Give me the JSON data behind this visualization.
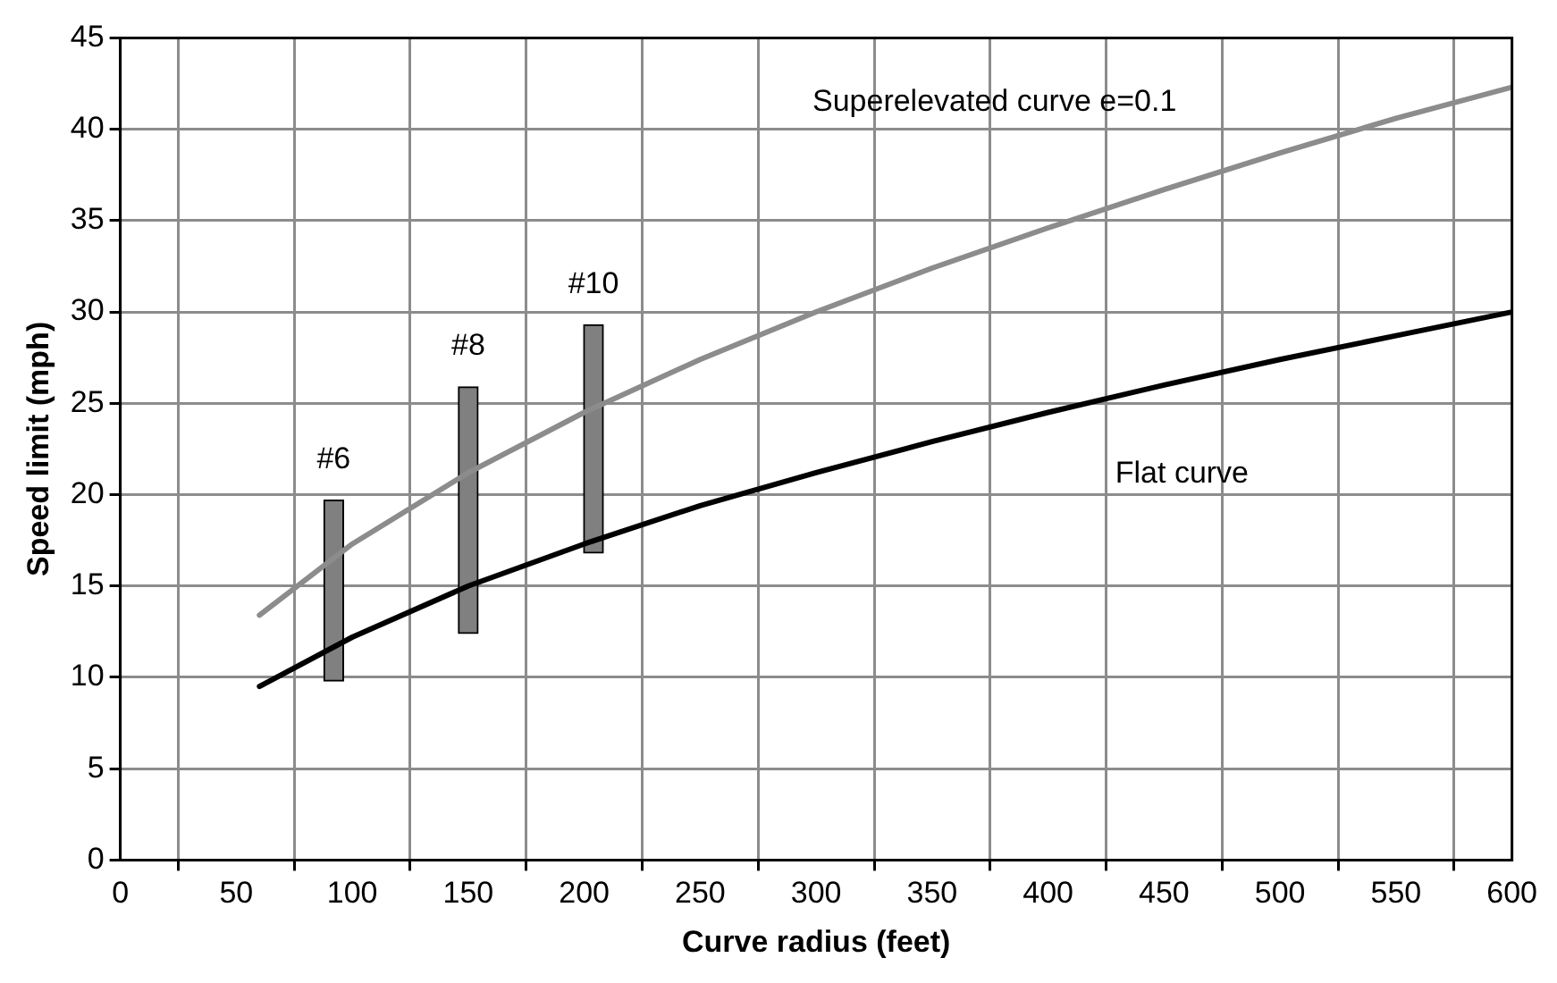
{
  "chart_data": {
    "type": "line",
    "xlabel": "Curve radius (feet)",
    "ylabel": "Speed limit (mph)",
    "xlim": [
      0,
      600
    ],
    "xticks": [
      0,
      50,
      100,
      150,
      200,
      250,
      300,
      350,
      400,
      450,
      500,
      550,
      600
    ],
    "ylim": [
      0,
      45
    ],
    "yticks": [
      0,
      5,
      10,
      15,
      20,
      25,
      30,
      35,
      40,
      45
    ],
    "grid": true,
    "legend": false,
    "marker": "none",
    "line_style": "solid",
    "series": [
      {
        "name": "Superelevated curve e=0.1",
        "color": "#8c8c8c",
        "x": [
          60,
          100,
          150,
          200,
          250,
          300,
          350,
          400,
          450,
          500,
          550,
          600
        ],
        "values": [
          13.4,
          17.3,
          21.2,
          24.5,
          27.4,
          30.0,
          32.4,
          34.6,
          36.7,
          38.7,
          40.6,
          42.3
        ]
      },
      {
        "name": "Flat curve",
        "color": "#000000",
        "x": [
          60,
          100,
          150,
          200,
          250,
          300,
          350,
          400,
          450,
          500,
          550,
          600
        ],
        "values": [
          9.5,
          12.2,
          15.0,
          17.3,
          19.4,
          21.2,
          22.9,
          24.5,
          26.0,
          27.4,
          28.7,
          30.0
        ]
      },
      {
        "type": "bar",
        "color": "#808080",
        "x": [
          92,
          150,
          204
        ],
        "base": [
          9.8,
          12.4,
          16.8
        ],
        "values": [
          9.9,
          13.5,
          12.5
        ]
      }
    ],
    "annotations": [
      "#6",
      "#8",
      "#10"
    ]
  }
}
